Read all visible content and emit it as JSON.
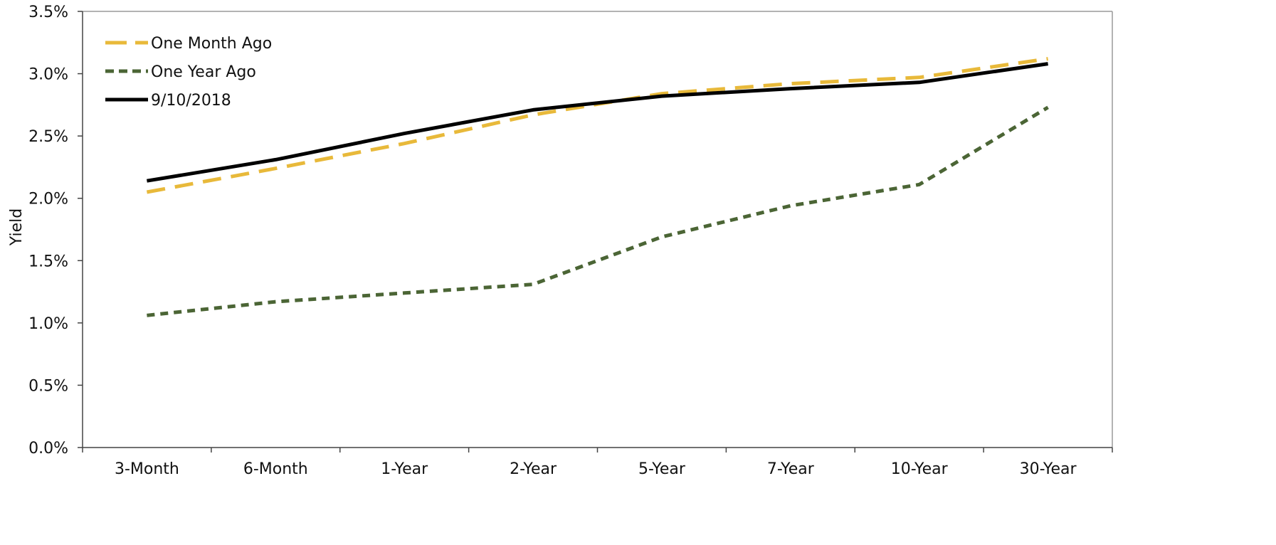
{
  "chart_data": {
    "type": "line",
    "categories": [
      "3-Month",
      "6-Month",
      "1-Year",
      "2-Year",
      "5-Year",
      "7-Year",
      "10-Year",
      "30-Year"
    ],
    "series": [
      {
        "name": "One Month Ago",
        "values": [
          2.05,
          2.24,
          2.44,
          2.67,
          2.84,
          2.92,
          2.97,
          3.12
        ],
        "color": "#E8B93A",
        "style": "long-dash"
      },
      {
        "name": "One Year Ago",
        "values": [
          1.06,
          1.17,
          1.24,
          1.31,
          1.69,
          1.94,
          2.11,
          2.73
        ],
        "color": "#4B6535",
        "style": "short-dash"
      },
      {
        "name": "9/10/2018",
        "values": [
          2.14,
          2.31,
          2.52,
          2.71,
          2.82,
          2.88,
          2.93,
          3.08
        ],
        "color": "#000000",
        "style": "solid"
      }
    ],
    "title": "",
    "xlabel": "",
    "ylabel": "Yield",
    "ylim": [
      0,
      3.5
    ],
    "yticks": [
      "0.0%",
      "0.5%",
      "1.0%",
      "1.5%",
      "2.0%",
      "2.5%",
      "3.0%",
      "3.5%"
    ],
    "grid": false,
    "legend_position": "top-left"
  }
}
